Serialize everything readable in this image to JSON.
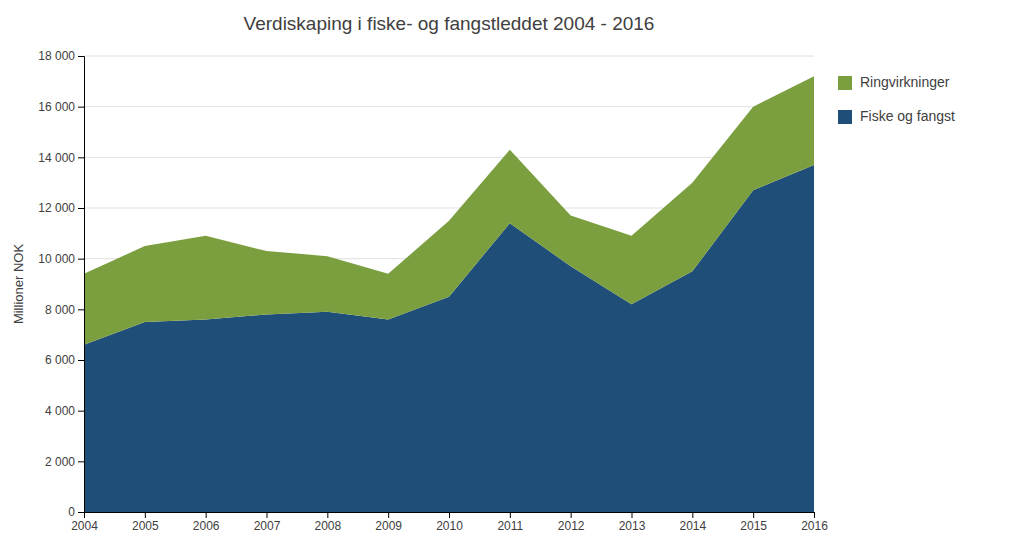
{
  "chart_data": {
    "type": "area",
    "stacked": true,
    "title": "Verdiskaping i fiske- og fangstleddet 2004 - 2016",
    "ylabel": "Millioner NOK",
    "x": [
      2004,
      2005,
      2006,
      2007,
      2008,
      2009,
      2010,
      2011,
      2012,
      2013,
      2014,
      2015,
      2016
    ],
    "series": [
      {
        "name": "Fiske og fangst",
        "color": "#1F4E79",
        "values": [
          6600,
          7500,
          7600,
          7800,
          7900,
          7600,
          8500,
          11400,
          9700,
          8200,
          9500,
          12700,
          13700
        ]
      },
      {
        "name": "Ringvirkninger",
        "color": "#7B9E3E",
        "values": [
          2800,
          3000,
          3300,
          2500,
          2200,
          1800,
          3000,
          2900,
          2000,
          2700,
          3500,
          3300,
          3500
        ]
      }
    ],
    "xlim": [
      2004,
      2016
    ],
    "xticks": [
      2004,
      2005,
      2006,
      2007,
      2008,
      2009,
      2010,
      2011,
      2012,
      2013,
      2014,
      2015,
      2016
    ],
    "ylim": [
      0,
      18000
    ],
    "yticks": [
      0,
      {
        "value": 2000,
        "label": "2 000"
      },
      {
        "value": 4000,
        "label": "4 000"
      },
      {
        "value": 6000,
        "label": "6 000"
      },
      {
        "value": 8000,
        "label": "8 000"
      },
      {
        "value": 10000,
        "label": "10 000"
      },
      {
        "value": 12000,
        "label": "12 000"
      },
      {
        "value": 14000,
        "label": "14 000"
      },
      {
        "value": 16000,
        "label": "16 000"
      },
      {
        "value": 18000,
        "label": "18 000"
      }
    ],
    "grid": true,
    "legend": "right"
  }
}
